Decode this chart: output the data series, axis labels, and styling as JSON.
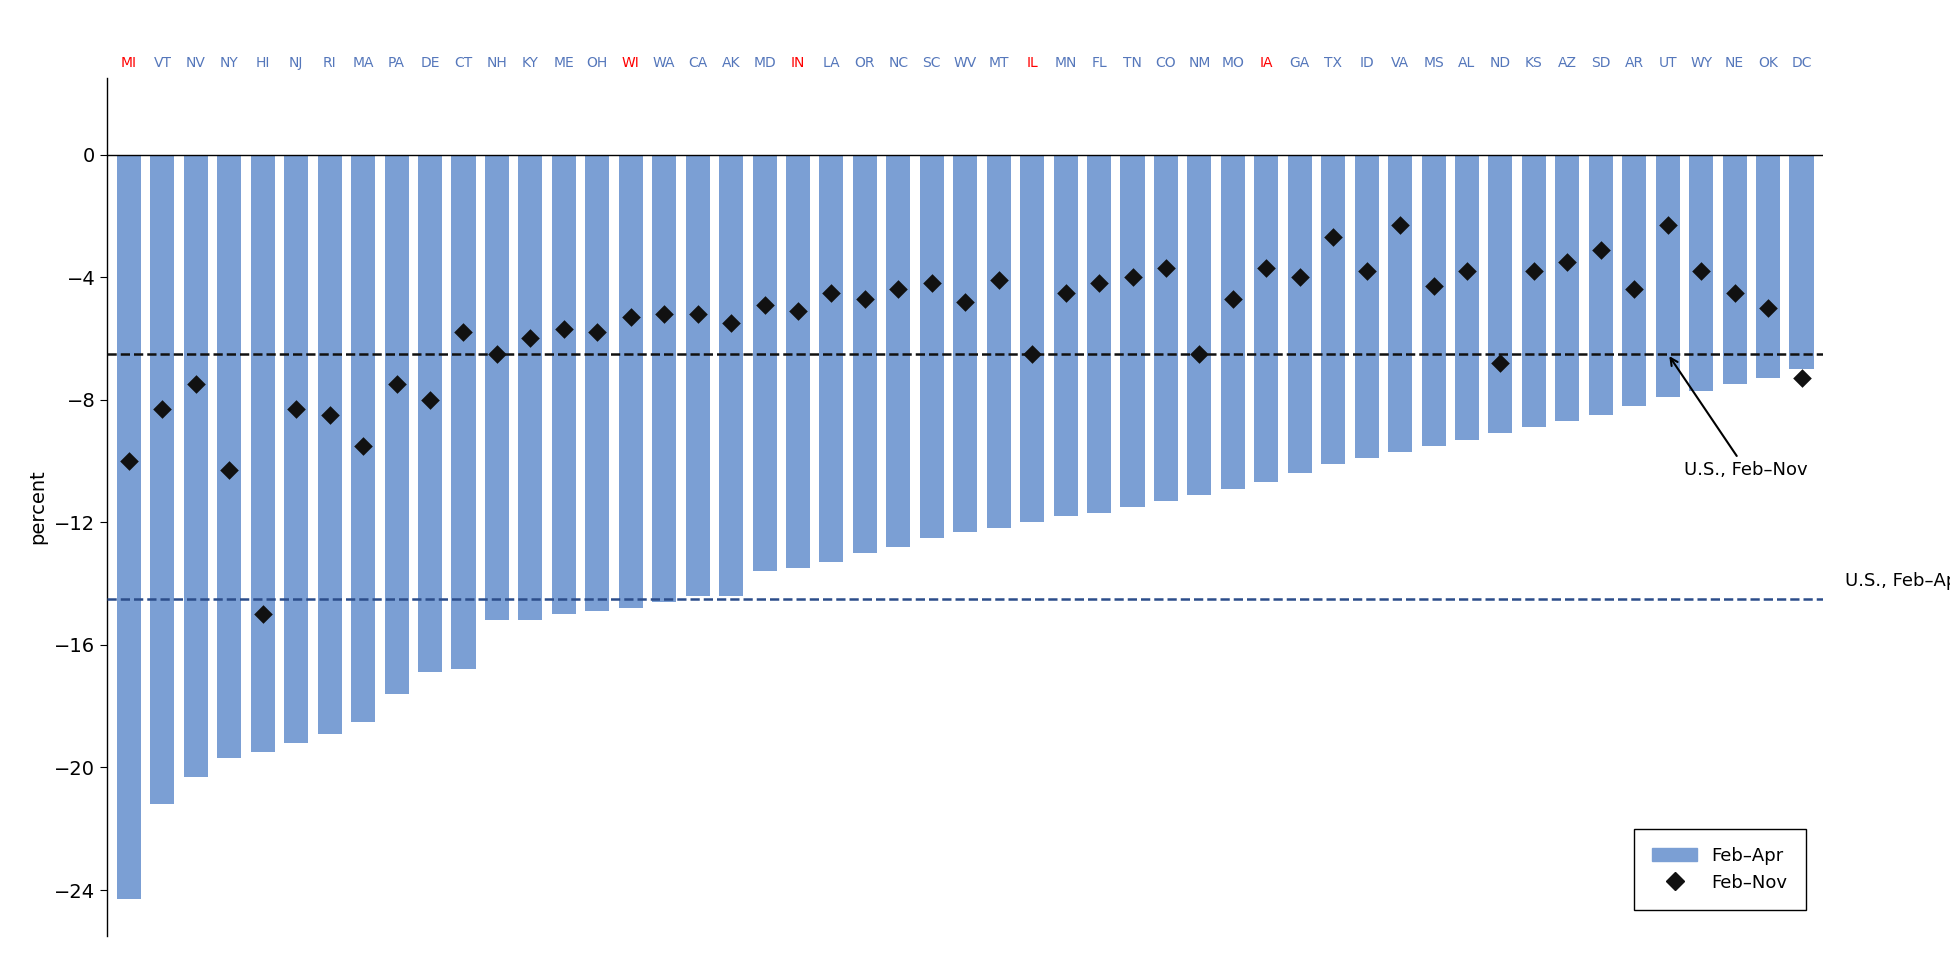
{
  "states": [
    "MI",
    "VT",
    "NV",
    "NY",
    "HI",
    "NJ",
    "RI",
    "MA",
    "PA",
    "DE",
    "CT",
    "NH",
    "KY",
    "ME",
    "OH",
    "WI",
    "WA",
    "CA",
    "AK",
    "MD",
    "IN",
    "LA",
    "OR",
    "NC",
    "SC",
    "WV",
    "MT",
    "IL",
    "MN",
    "FL",
    "TN",
    "CO",
    "NM",
    "MO",
    "IA",
    "GA",
    "TX",
    "ID",
    "VA",
    "MS",
    "AL",
    "ND",
    "KS",
    "AZ",
    "SD",
    "AR",
    "UT",
    "WY",
    "NE",
    "OK",
    "DC"
  ],
  "feb_apr": [
    -24.3,
    -21.2,
    -20.3,
    -19.7,
    -19.5,
    -19.2,
    -18.9,
    -18.5,
    -17.6,
    -16.9,
    -16.8,
    -15.2,
    -15.2,
    -15.0,
    -14.9,
    -14.8,
    -14.6,
    -14.4,
    -14.4,
    -13.6,
    -13.5,
    -13.3,
    -13.0,
    -12.8,
    -12.5,
    -12.3,
    -12.2,
    -12.0,
    -11.8,
    -11.7,
    -11.5,
    -11.3,
    -11.1,
    -10.9,
    -10.7,
    -10.4,
    -10.1,
    -9.9,
    -9.7,
    -9.5,
    -9.3,
    -9.1,
    -8.9,
    -8.7,
    -8.5,
    -8.2,
    -7.9,
    -7.7,
    -7.5,
    -7.3,
    -7.0
  ],
  "feb_nov": [
    -10.0,
    -8.3,
    -7.5,
    -10.3,
    -15.0,
    -8.3,
    -8.5,
    -9.5,
    -7.5,
    -8.0,
    -5.8,
    -6.5,
    -6.0,
    -5.7,
    -5.8,
    -5.3,
    -5.2,
    -5.2,
    -5.5,
    -4.9,
    -5.1,
    -4.5,
    -4.7,
    -4.4,
    -4.2,
    -4.8,
    -4.1,
    -6.5,
    -4.5,
    -4.2,
    -4.0,
    -3.7,
    -6.5,
    -4.7,
    -3.7,
    -4.0,
    -2.7,
    -3.8,
    -2.3,
    -4.3,
    -3.8,
    -6.8,
    -3.8,
    -3.5,
    -3.1,
    -4.4,
    -2.3,
    -3.8,
    -4.5,
    -5.0,
    -7.3
  ],
  "red_states": [
    "MI",
    "WI",
    "IN",
    "IL",
    "IA"
  ],
  "us_feb_apr": -14.5,
  "us_feb_nov": -6.5,
  "bar_color": "#7b9fd4",
  "diamond_color": "#111111",
  "us_feb_apr_line_color": "#2c4d8a",
  "us_feb_nov_line_color": "#111111",
  "ylabel": "percent",
  "ylim": [
    -25.5,
    2.5
  ],
  "yticks": [
    0,
    -4,
    -8,
    -12,
    -16,
    -20,
    -24
  ],
  "ytick_labels": [
    "0",
    "−4",
    "−8",
    "−12",
    "−16",
    "−20",
    "−24"
  ]
}
